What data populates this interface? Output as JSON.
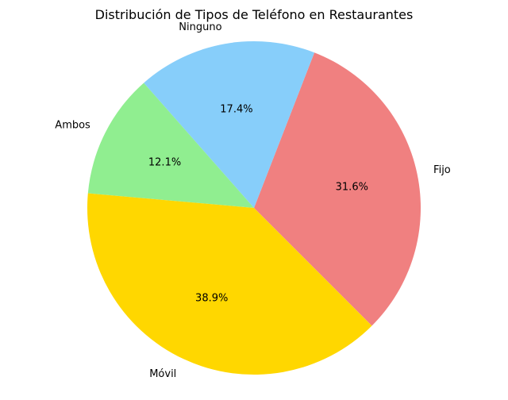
{
  "chart_data": {
    "type": "pie",
    "title": "Distribución de Tipos de Teléfono en Restaurantes",
    "categories": [
      "Fijo",
      "Ninguno",
      "Ambos",
      "Móvil"
    ],
    "values": [
      31.6,
      17.4,
      12.1,
      38.9
    ],
    "value_labels": [
      "31.6%",
      "17.4%",
      "12.1%",
      "38.9%"
    ],
    "colors": [
      "#f08080",
      "#87cefa",
      "#90ee90",
      "#ffd700"
    ],
    "start_angle_deg": -45,
    "direction": "counterclockwise"
  }
}
